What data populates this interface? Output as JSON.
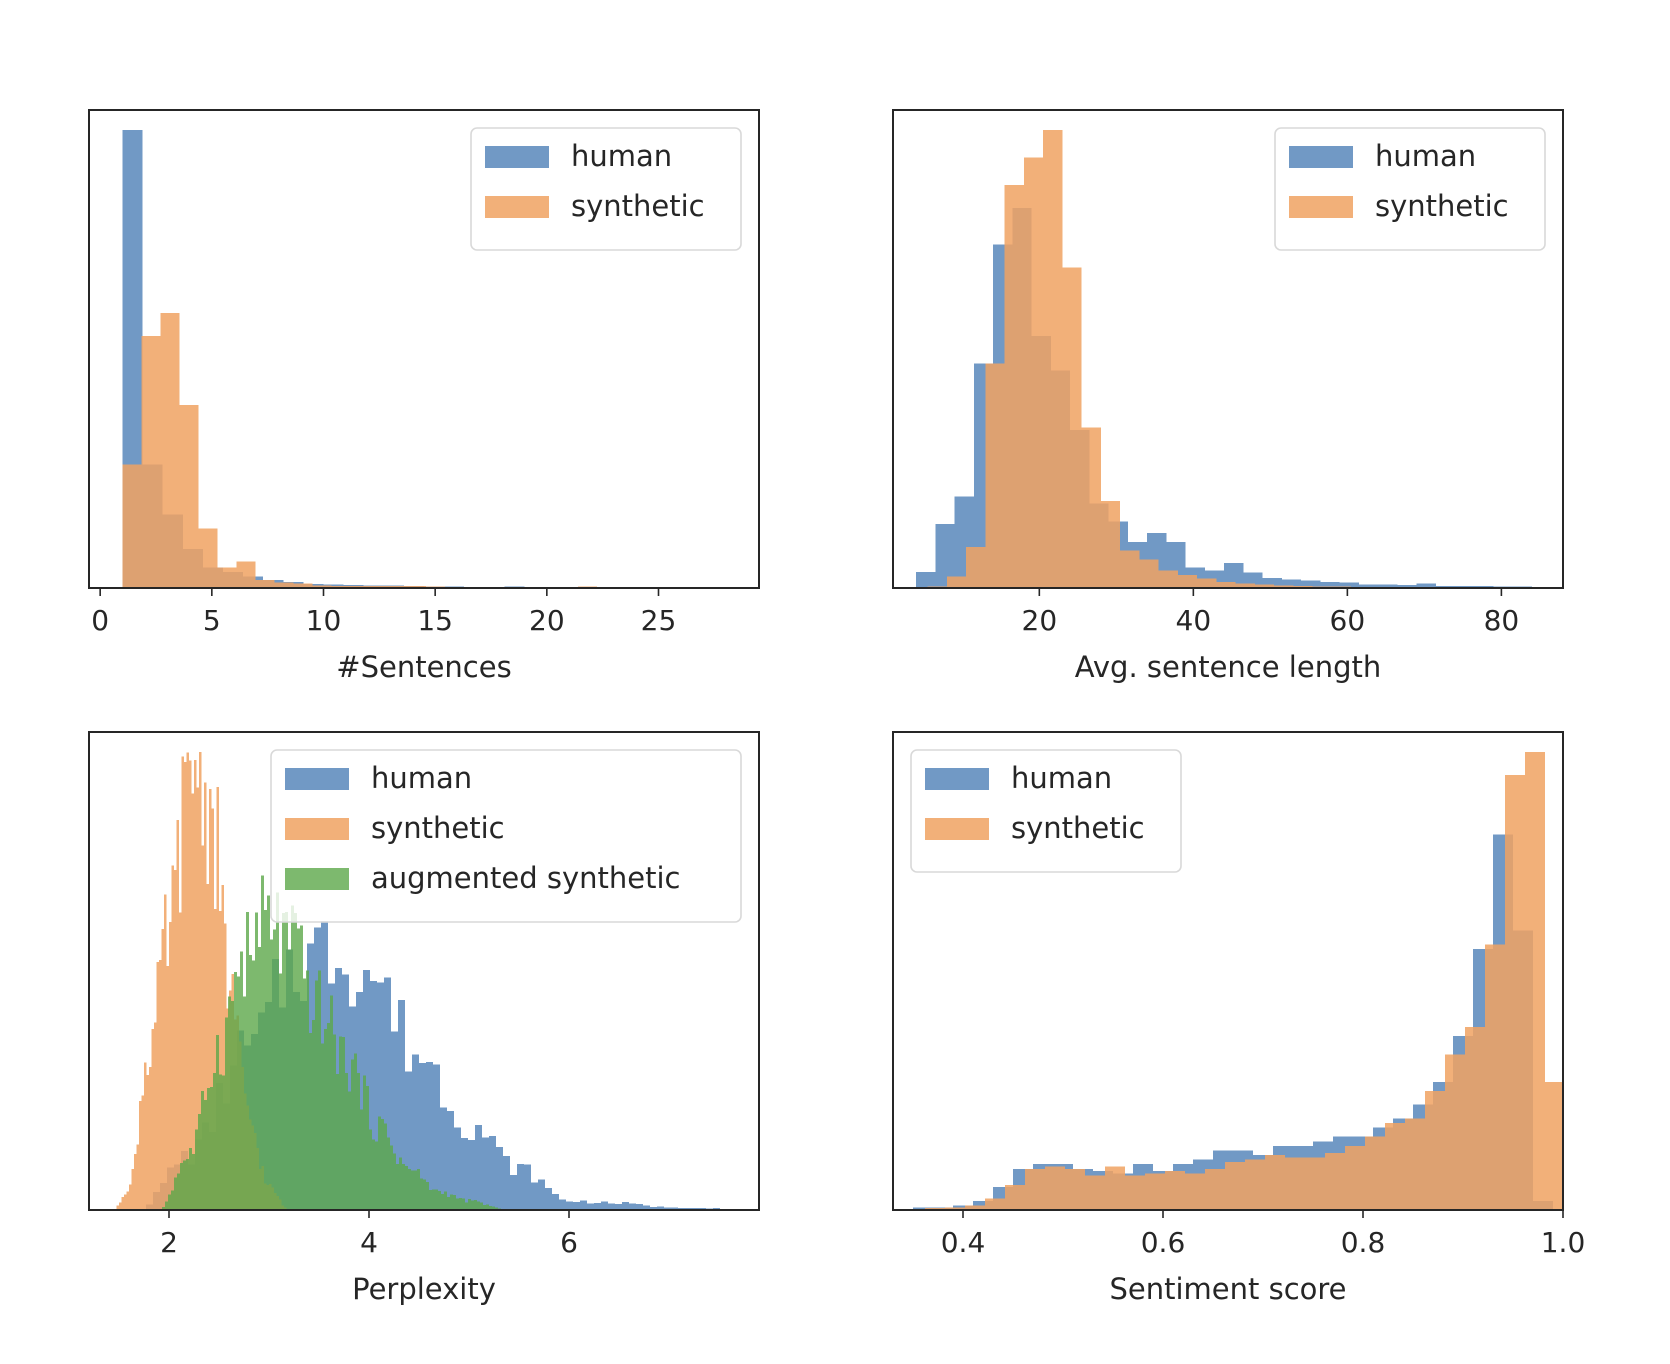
{
  "chart_data": [
    {
      "type": "histogram",
      "xlabel": "#Sentences",
      "ylabel": "",
      "xlim": [
        -0.5,
        29.5
      ],
      "xticks": [
        0,
        5,
        10,
        15,
        20,
        25
      ],
      "yaxis_ticks_shown": false,
      "legend_position": "upper right",
      "series": [
        {
          "name": "human",
          "color": "#4d7fb6",
          "opacity": 0.8,
          "bin_width": 0.9,
          "bins_start": 1.0,
          "heights": [
            1.0,
            0.27,
            0.16,
            0.085,
            0.045,
            0.035,
            0.025,
            0.018,
            0.013,
            0.009,
            0.008,
            0.007,
            0.005,
            0.005,
            0.004,
            0.003,
            0.003,
            0.002,
            0.002,
            0.003,
            0.002,
            0.002,
            0.002,
            0.002,
            0.002,
            0.002,
            0.002,
            0.002,
            0.002,
            0.002
          ]
        },
        {
          "name": "synthetic",
          "color": "#f0a261",
          "opacity": 0.85,
          "bin_width": 0.85,
          "bins_start": 1.0,
          "heights": [
            0.27,
            0.55,
            0.6,
            0.4,
            0.13,
            0.045,
            0.058,
            0.018,
            0.012,
            0.01,
            0.006,
            0.004,
            0.004,
            0.004,
            0.004,
            0.004,
            0.003,
            0.002,
            0.002,
            0.002,
            0.002,
            0.002,
            0.002,
            0.002,
            0.003,
            0.002,
            0.002,
            0.002,
            0.002,
            0.002,
            0.002
          ]
        }
      ]
    },
    {
      "type": "histogram",
      "xlabel": "Avg. sentence length",
      "ylabel": "",
      "xlim": [
        1,
        88
      ],
      "xticks": [
        20,
        40,
        60,
        80
      ],
      "yaxis_ticks_shown": false,
      "legend_position": "upper right",
      "series": [
        {
          "name": "human",
          "color": "#4d7fb6",
          "opacity": 0.8,
          "bin_width": 2.5,
          "bins_start": 4.0,
          "heights": [
            0.035,
            0.14,
            0.2,
            0.49,
            0.75,
            0.83,
            0.55,
            0.475,
            0.345,
            0.185,
            0.145,
            0.1,
            0.12,
            0.1,
            0.045,
            0.038,
            0.055,
            0.034,
            0.022,
            0.019,
            0.016,
            0.013,
            0.012,
            0.008,
            0.008,
            0.007,
            0.01,
            0.004,
            0.004,
            0.004,
            0.003,
            0.003,
            0.002
          ]
        },
        {
          "name": "synthetic",
          "color": "#f0a261",
          "opacity": 0.85,
          "bin_width": 2.5,
          "bins_start": 5.5,
          "heights": [
            0.003,
            0.025,
            0.09,
            0.49,
            0.88,
            0.94,
            1.0,
            0.7,
            0.35,
            0.19,
            0.082,
            0.062,
            0.038,
            0.028,
            0.021,
            0.013,
            0.01,
            0.008,
            0.005,
            0.004,
            0.003,
            0.003,
            0.002,
            0.002,
            0.002,
            0.001,
            0.001,
            0.001,
            0.001,
            0.001
          ]
        }
      ]
    },
    {
      "type": "histogram",
      "xlabel": "Perplexity",
      "ylabel": "",
      "xlim": [
        1.2,
        7.9
      ],
      "xticks": [
        2,
        4,
        6
      ],
      "yaxis_ticks_shown": false,
      "legend_position": "upper right",
      "series": [
        {
          "name": "human",
          "color": "#4d7fb6",
          "opacity": 0.8,
          "bin_width": 0.07,
          "peaks": [
            [
              1.7,
              0.0
            ],
            [
              2.2,
              0.12
            ],
            [
              2.8,
              0.35
            ],
            [
              3.3,
              0.55
            ],
            [
              3.7,
              0.57
            ],
            [
              4.0,
              0.52
            ],
            [
              4.5,
              0.34
            ],
            [
              5.0,
              0.19
            ],
            [
              5.5,
              0.09
            ],
            [
              6.0,
              0.02
            ],
            [
              6.5,
              0.015
            ],
            [
              7.0,
              0.006
            ],
            [
              7.5,
              0.004
            ]
          ]
        },
        {
          "name": "synthetic",
          "color": "#f0a261",
          "opacity": 0.85,
          "bin_width": 0.025,
          "peaks": [
            [
              1.45,
              0.0
            ],
            [
              1.6,
              0.05
            ],
            [
              1.8,
              0.35
            ],
            [
              2.0,
              0.6
            ],
            [
              2.15,
              0.85
            ],
            [
              2.28,
              1.0
            ],
            [
              2.45,
              0.82
            ],
            [
              2.6,
              0.5
            ],
            [
              2.8,
              0.2
            ],
            [
              3.0,
              0.05
            ],
            [
              3.2,
              0.0
            ]
          ]
        },
        {
          "name": "augmented synthetic",
          "color": "#5da74a",
          "opacity": 0.8,
          "bin_width": 0.03,
          "peaks": [
            [
              1.9,
              0.0
            ],
            [
              2.2,
              0.12
            ],
            [
              2.5,
              0.35
            ],
            [
              2.75,
              0.55
            ],
            [
              3.0,
              0.63
            ],
            [
              3.2,
              0.58
            ],
            [
              3.5,
              0.44
            ],
            [
              3.8,
              0.32
            ],
            [
              4.1,
              0.18
            ],
            [
              4.4,
              0.09
            ],
            [
              4.7,
              0.04
            ],
            [
              5.0,
              0.02
            ],
            [
              5.4,
              0.0
            ]
          ]
        }
      ]
    },
    {
      "type": "histogram",
      "xlabel": "Sentiment score",
      "ylabel": "",
      "xlim": [
        0.33,
        1.0
      ],
      "xticks": [
        "0.4",
        "0.6",
        "0.8",
        "1.0"
      ],
      "yaxis_ticks_shown": false,
      "legend_position": "upper left",
      "series": [
        {
          "name": "human",
          "color": "#4d7fb6",
          "opacity": 0.8,
          "bin_width": 0.02,
          "bins_start": 0.35,
          "heights": [
            0.005,
            0.005,
            0.01,
            0.02,
            0.05,
            0.09,
            0.1,
            0.1,
            0.09,
            0.085,
            0.08,
            0.1,
            0.085,
            0.1,
            0.11,
            0.13,
            0.13,
            0.12,
            0.14,
            0.14,
            0.15,
            0.16,
            0.16,
            0.18,
            0.2,
            0.23,
            0.28,
            0.38,
            0.57,
            0.82,
            0.61,
            0.02
          ]
        },
        {
          "name": "synthetic",
          "color": "#f0a261",
          "opacity": 0.85,
          "bin_width": 0.02,
          "bins_start": 0.362,
          "heights": [
            0.004,
            0.005,
            0.01,
            0.025,
            0.055,
            0.09,
            0.095,
            0.09,
            0.075,
            0.095,
            0.075,
            0.08,
            0.085,
            0.08,
            0.09,
            0.105,
            0.11,
            0.12,
            0.115,
            0.115,
            0.125,
            0.14,
            0.16,
            0.19,
            0.2,
            0.26,
            0.34,
            0.4,
            0.58,
            0.95,
            1.0,
            0.28
          ]
        }
      ]
    }
  ]
}
